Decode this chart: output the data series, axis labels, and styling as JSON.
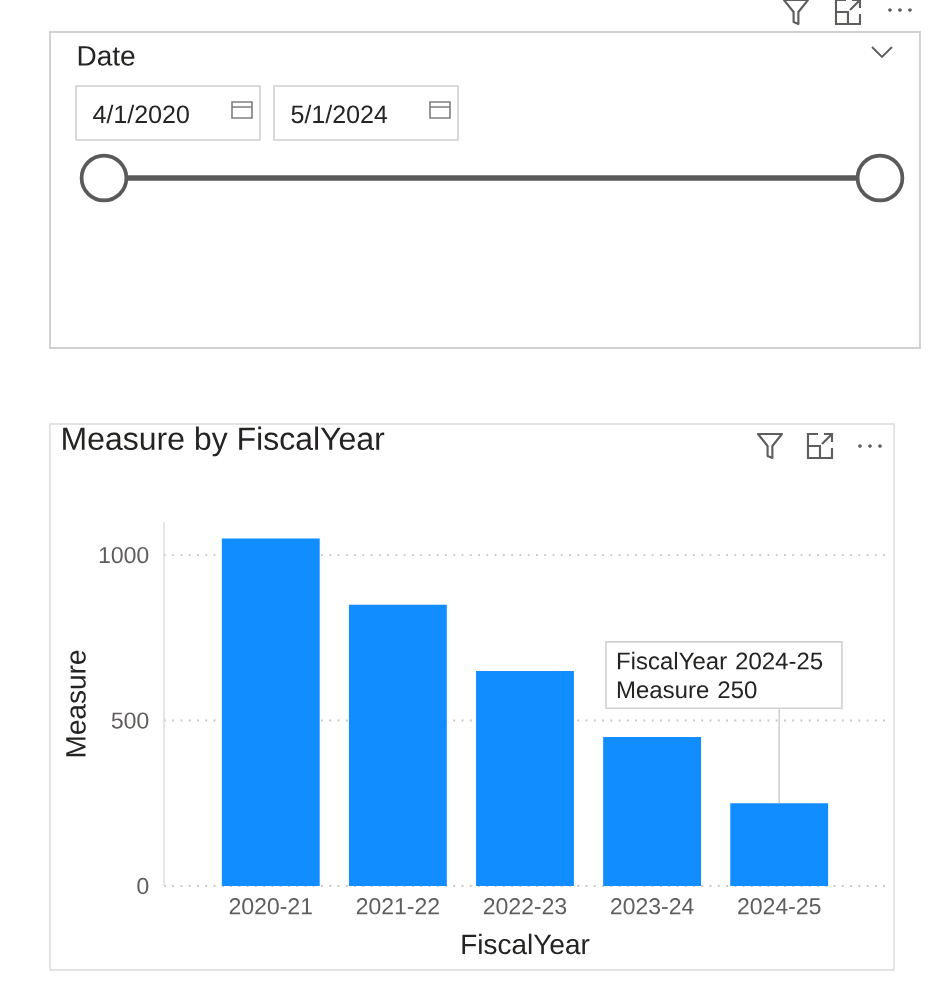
{
  "chart_data": [
    {
      "type": "other",
      "title": "Date",
      "annotations": [
        "4/1/2020",
        "5/1/2024"
      ]
    },
    {
      "type": "bar",
      "title": "Measure by FiscalYear",
      "xlabel": "FiscalYear",
      "ylabel": "Measure",
      "categories": [
        "2020-21",
        "2021-22",
        "2022-23",
        "2023-24",
        "2024-25"
      ],
      "values": [
        1050,
        850,
        650,
        450,
        250
      ],
      "color": "#118dff",
      "ylim": [
        0,
        1100
      ],
      "yticks": [
        0,
        500,
        1000
      ],
      "grid": "y",
      "annotations": [
        {
          "text": "FiscalYear 2024-25 Measure 250",
          "x": "2024-25",
          "y": 250
        }
      ]
    }
  ]
}
